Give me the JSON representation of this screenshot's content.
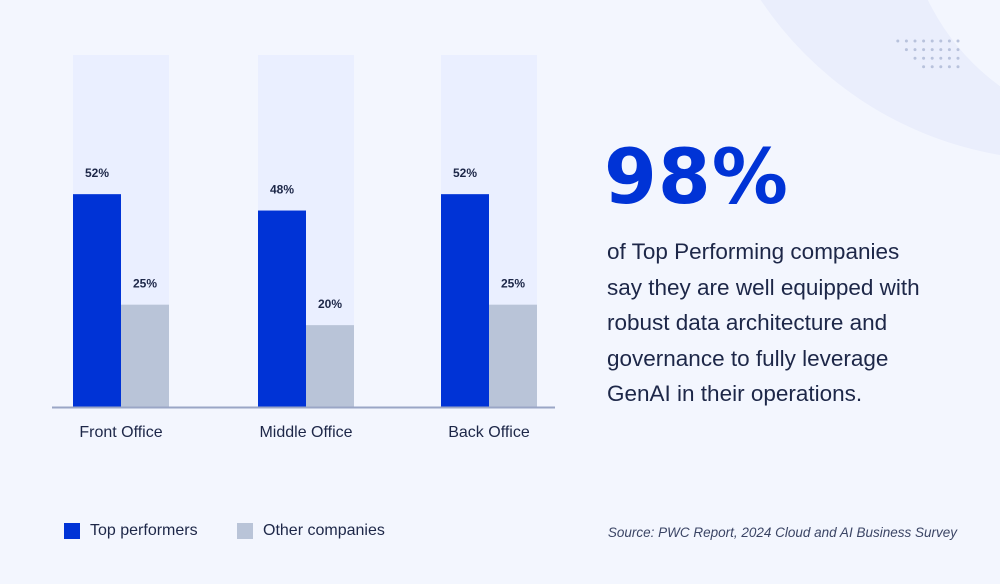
{
  "chart_data": {
    "type": "bar",
    "categories": [
      "Front Office",
      "Middle Office",
      "Back Office"
    ],
    "series": [
      {
        "name": "Top performers",
        "values": [
          52,
          48,
          52
        ],
        "labels": [
          "52%",
          "48%",
          "52%"
        ]
      },
      {
        "name": "Other companies",
        "values": [
          25,
          20,
          25
        ],
        "labels": [
          "25%",
          "20%",
          "25%"
        ]
      }
    ],
    "ylim": [
      0,
      86
    ],
    "grid": false,
    "legend": "bottom-left",
    "colors": {
      "top": "#0033d6",
      "other": "#b9c4d8",
      "track": "#eaefff",
      "axis": "#9aa6c6"
    }
  },
  "highlight": {
    "value": "98%",
    "text": [
      "of Top Performing companies",
      "say they are well equipped with",
      "robust data architecture and",
      "governance to fully leverage",
      "GenAI in their operations."
    ]
  },
  "source": "Source: PWC Report, 2024 Cloud and AI Business Survey"
}
